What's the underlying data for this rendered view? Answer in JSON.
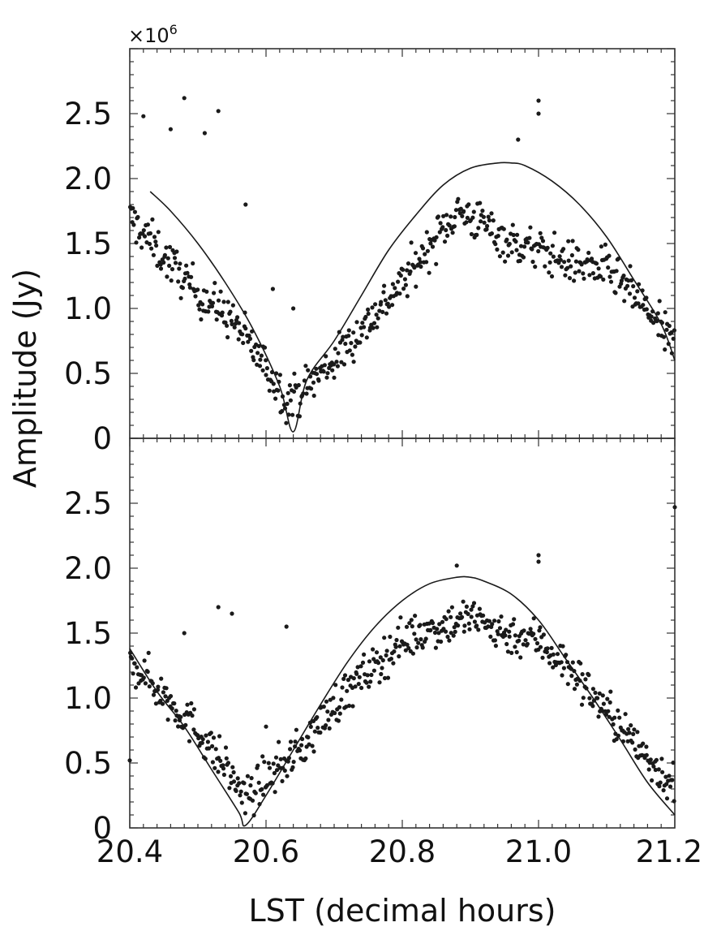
{
  "chart_data": {
    "type": "scatter",
    "xlabel": "LST (decimal hours)",
    "ylabel": "Amplitude (Jy)",
    "y_multiplier": "×10",
    "y_multiplier_exp": "6",
    "xlim": [
      20.4,
      21.2
    ],
    "x_ticks": [
      "20.4",
      "20.6",
      "20.8",
      "21.0",
      "21.2"
    ],
    "grid": false,
    "legend": "none",
    "colors": {
      "points": "#1a1a1a",
      "curve": "#1a1a1a",
      "axes": "#333333"
    },
    "panels": [
      {
        "ylim": [
          0,
          3.0
        ],
        "y_ticks": [
          "0",
          "0.5",
          "1.0",
          "1.5",
          "2.0",
          "2.5"
        ],
        "model_curve": {
          "x": [
            20.43,
            20.46,
            20.5,
            20.54,
            20.58,
            20.62,
            20.64,
            20.66,
            20.7,
            20.74,
            20.78,
            20.82,
            20.86,
            20.9,
            20.94,
            20.96,
            20.98,
            21.02,
            21.06,
            21.1,
            21.14,
            21.18,
            21.2
          ],
          "y": [
            1.9,
            1.75,
            1.5,
            1.2,
            0.85,
            0.4,
            0.05,
            0.45,
            0.75,
            1.1,
            1.45,
            1.72,
            1.95,
            2.08,
            2.12,
            2.12,
            2.1,
            1.98,
            1.8,
            1.55,
            1.22,
            0.88,
            0.6
          ]
        },
        "trend": {
          "x": [
            20.4,
            20.45,
            20.5,
            20.55,
            20.6,
            20.63,
            20.65,
            20.7,
            20.75,
            20.8,
            20.85,
            20.88,
            20.92,
            20.96,
            21.0,
            21.05,
            21.1,
            21.15,
            21.2
          ],
          "y": [
            1.7,
            1.4,
            1.12,
            0.92,
            0.55,
            0.3,
            0.35,
            0.6,
            0.9,
            1.2,
            1.55,
            1.75,
            1.65,
            1.5,
            1.45,
            1.35,
            1.3,
            1.05,
            0.7
          ]
        },
        "outliers": [
          {
            "x": 20.42,
            "y": 2.48
          },
          {
            "x": 20.48,
            "y": 2.62
          },
          {
            "x": 20.46,
            "y": 2.38
          },
          {
            "x": 20.51,
            "y": 2.35
          },
          {
            "x": 20.53,
            "y": 2.52
          },
          {
            "x": 20.57,
            "y": 1.8
          },
          {
            "x": 20.64,
            "y": 1.0
          },
          {
            "x": 20.61,
            "y": 1.15
          },
          {
            "x": 21.0,
            "y": 2.6
          },
          {
            "x": 21.0,
            "y": 2.5
          },
          {
            "x": 20.97,
            "y": 2.3
          }
        ]
      },
      {
        "ylim": [
          0,
          3.0
        ],
        "y_ticks": [
          "0",
          "0.5",
          "1.0",
          "1.5",
          "2.0",
          "2.5"
        ],
        "model_curve": {
          "x": [
            20.4,
            20.44,
            20.48,
            20.52,
            20.56,
            20.57,
            20.6,
            20.64,
            20.68,
            20.72,
            20.76,
            20.8,
            20.84,
            20.88,
            20.9,
            20.92,
            20.96,
            21.0,
            21.04,
            21.08,
            21.12,
            21.16,
            21.2
          ],
          "y": [
            1.38,
            1.05,
            0.78,
            0.45,
            0.12,
            0.02,
            0.25,
            0.6,
            0.95,
            1.28,
            1.55,
            1.75,
            1.88,
            1.93,
            1.93,
            1.9,
            1.8,
            1.6,
            1.3,
            1.0,
            0.68,
            0.35,
            0.1
          ]
        },
        "trend": {
          "x": [
            20.4,
            20.45,
            20.5,
            20.55,
            20.57,
            20.6,
            20.65,
            20.7,
            20.75,
            20.8,
            20.85,
            20.9,
            20.95,
            21.0,
            21.05,
            21.1,
            21.15,
            21.2
          ],
          "y": [
            1.3,
            1.02,
            0.75,
            0.4,
            0.22,
            0.38,
            0.6,
            0.95,
            1.2,
            1.45,
            1.55,
            1.62,
            1.5,
            1.45,
            1.2,
            0.9,
            0.6,
            0.32
          ]
        },
        "outliers": [
          {
            "x": 20.53,
            "y": 1.7
          },
          {
            "x": 20.55,
            "y": 1.65
          },
          {
            "x": 20.63,
            "y": 1.55
          },
          {
            "x": 20.48,
            "y": 1.5
          },
          {
            "x": 20.6,
            "y": 0.78
          },
          {
            "x": 21.0,
            "y": 2.1
          },
          {
            "x": 21.0,
            "y": 2.05
          },
          {
            "x": 20.88,
            "y": 2.02
          },
          {
            "x": 21.2,
            "y": 2.47
          },
          {
            "x": 20.38,
            "y": 0.52
          }
        ]
      }
    ]
  }
}
